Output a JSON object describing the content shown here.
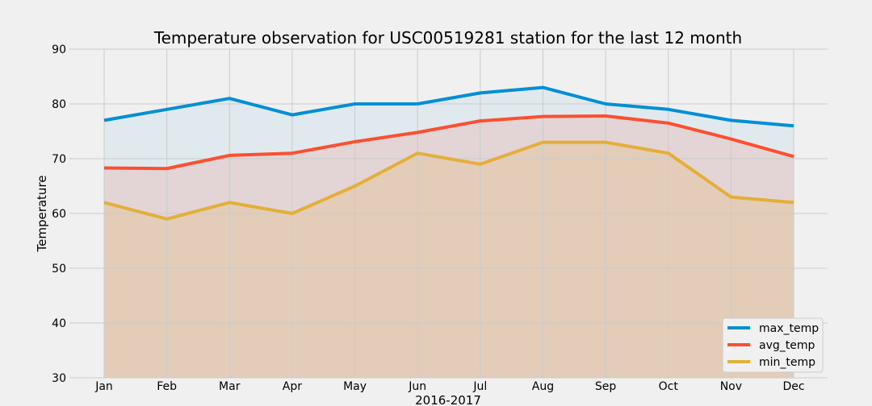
{
  "chart_data": {
    "type": "line",
    "title": "Temperature observation for USC00519281 station for the last 12 month",
    "xlabel": "2016-2017",
    "ylabel": "Temperature",
    "categories": [
      "Jan",
      "Feb",
      "Mar",
      "Apr",
      "May",
      "Jun",
      "Jul",
      "Aug",
      "Sep",
      "Oct",
      "Nov",
      "Dec"
    ],
    "ylim": [
      30,
      90
    ],
    "yticks": [
      30,
      40,
      50,
      60,
      70,
      80,
      90
    ],
    "grid": true,
    "legend_position": "bottom-right",
    "filled": true,
    "series": [
      {
        "name": "max_temp",
        "color": "#008fd5",
        "values": [
          77,
          79,
          81,
          78,
          80,
          80,
          82,
          83,
          80,
          79,
          77,
          76
        ]
      },
      {
        "name": "avg_temp",
        "color": "#fc4f30",
        "values": [
          68.3,
          68.2,
          70.6,
          71.0,
          73.1,
          74.8,
          76.9,
          77.7,
          77.8,
          76.5,
          73.6,
          70.4
        ]
      },
      {
        "name": "min_temp",
        "color": "#e5ae38",
        "values": [
          62,
          59,
          62,
          60,
          65,
          71,
          69,
          73,
          73,
          71,
          63,
          62
        ]
      }
    ]
  }
}
